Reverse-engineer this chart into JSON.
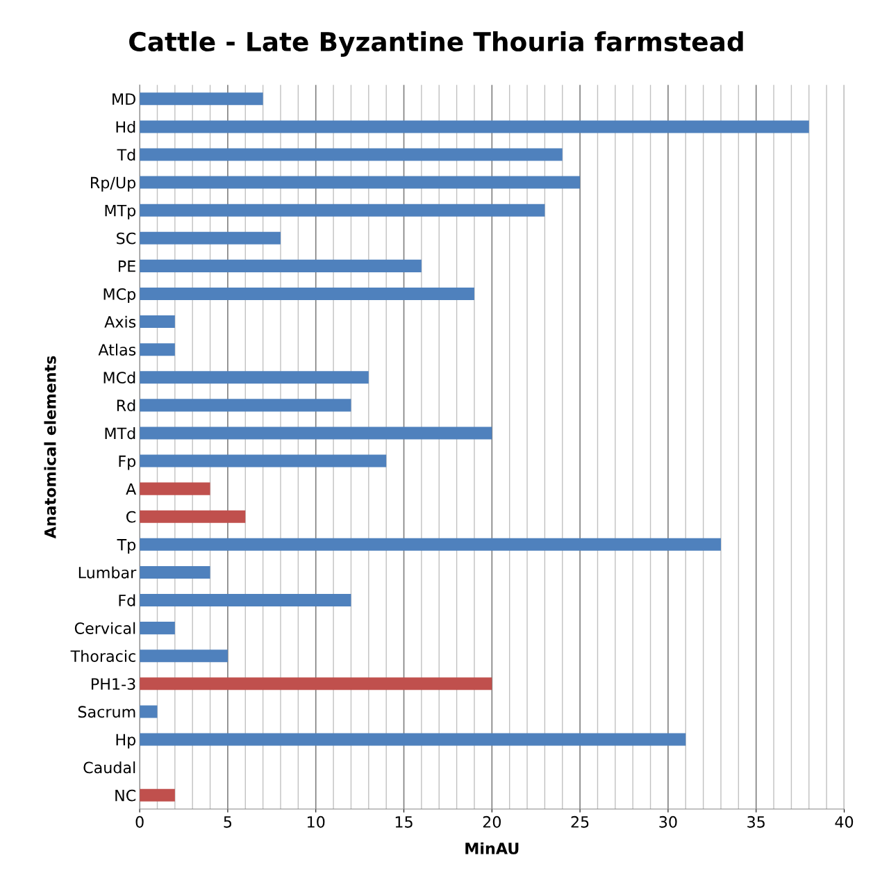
{
  "chart_data": {
    "type": "bar",
    "orientation": "horizontal",
    "title": "Cattle - Late Byzantine Thouria farmstead",
    "xlabel": "MinAU",
    "ylabel": "Anatomical elements",
    "categories": [
      "MD",
      "Hd",
      "Td",
      "Rp/Up",
      "MTp",
      "SC",
      "PE",
      "MCp",
      "Axis",
      "Atlas",
      "MCd",
      "Rd",
      "MTd",
      "Fp",
      "A",
      "C",
      "Tp",
      "Lumbar",
      "Fd",
      "Cervical",
      "Thoracic",
      "PH1-3",
      "Sacrum",
      "Hp",
      "Caudal",
      "NC"
    ],
    "values": [
      7,
      38,
      24,
      25,
      23,
      8,
      16,
      19,
      2,
      2,
      13,
      12,
      20,
      14,
      4,
      6,
      33,
      4,
      12,
      2,
      5,
      20,
      1,
      31,
      0,
      2
    ],
    "colors": [
      "#4f81bd",
      "#4f81bd",
      "#4f81bd",
      "#4f81bd",
      "#4f81bd",
      "#4f81bd",
      "#4f81bd",
      "#4f81bd",
      "#4f81bd",
      "#4f81bd",
      "#4f81bd",
      "#4f81bd",
      "#4f81bd",
      "#4f81bd",
      "#c0504d",
      "#c0504d",
      "#4f81bd",
      "#4f81bd",
      "#4f81bd",
      "#4f81bd",
      "#4f81bd",
      "#c0504d",
      "#4f81bd",
      "#4f81bd",
      "#4f81bd",
      "#c0504d"
    ],
    "xlim": [
      0,
      40
    ],
    "xticks": [
      0,
      5,
      10,
      15,
      20,
      25,
      30,
      35,
      40
    ],
    "grid": "x"
  }
}
